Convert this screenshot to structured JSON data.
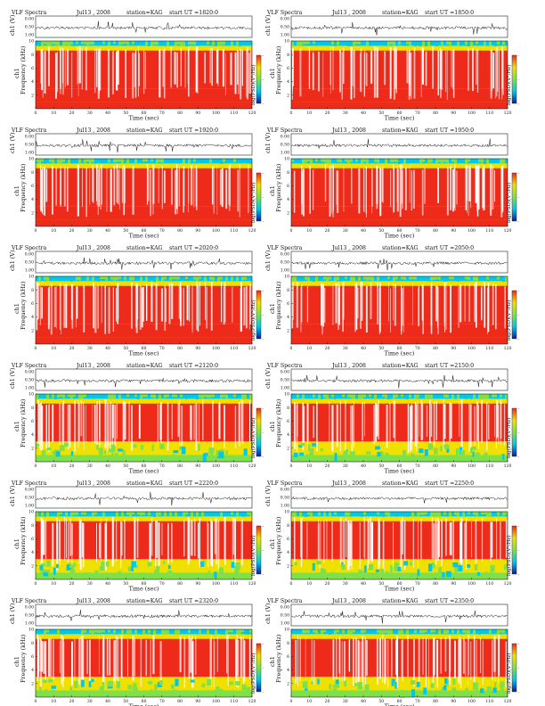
{
  "page": {
    "title": "VLF Spectra",
    "date": "Jul13 , 2008",
    "station": "station=KAG"
  },
  "panels": [
    {
      "start": "start  UT  =1820:0"
    },
    {
      "start": "start  UT  =1850:0"
    },
    {
      "start": "start  UT  =1920:0"
    },
    {
      "start": "start  UT  =1950:0"
    },
    {
      "start": "start  UT  =2020:0"
    },
    {
      "start": "start  UT  =2050:0"
    },
    {
      "start": "start  UT  =2120:0"
    },
    {
      "start": "start  UT  =2150:0"
    },
    {
      "start": "start  UT  =2220:0"
    },
    {
      "start": "start  UT  =2250:0"
    },
    {
      "start": "start  UT  =2320:0"
    },
    {
      "start": "start  UT  =2350:0"
    }
  ],
  "colors": {
    "low": "#0a1aa8",
    "mid_low": "#00c8e8",
    "mid": "#7ee04a",
    "mid_high": "#f0e000",
    "high": "#ee2a1a"
  },
  "chart_data": {
    "type": "heatmap",
    "count": 12,
    "waveform": {
      "ylabel": "ch1 (V)",
      "yticks": [
        "0.00",
        "0.50",
        "1.00"
      ],
      "ylim": [
        -1,
        1
      ]
    },
    "spectrogram": {
      "xlabel": "Time  (sec)",
      "ylabel_top": "ch1",
      "ylabel": "Frequency  (kHz)",
      "xlim": [
        0,
        120
      ],
      "ylim": [
        0,
        10
      ],
      "xticks": [
        "0",
        "10",
        "20",
        "30",
        "40",
        "50",
        "60",
        "70",
        "80",
        "90",
        "100",
        "110",
        "120"
      ],
      "yticks": [
        "2",
        "4",
        "6",
        "8",
        "10"
      ]
    },
    "colorbar": {
      "label": "log(PSD)(V²/Hz)",
      "ticks": [
        "-",
        "-",
        "-"
      ]
    }
  }
}
